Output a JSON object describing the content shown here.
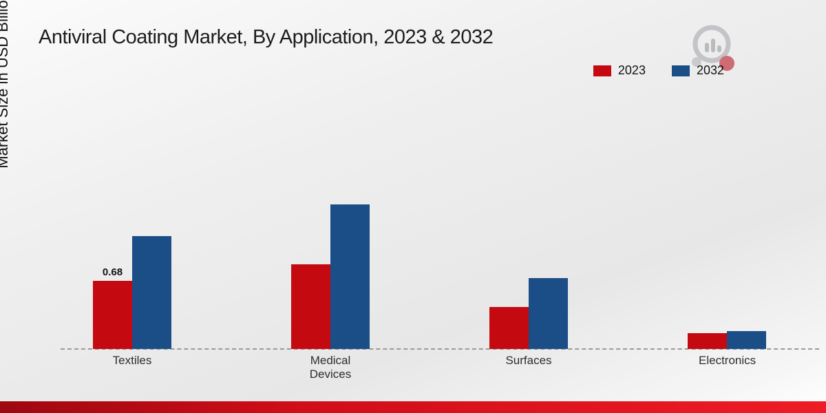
{
  "title": "Antiviral Coating Market, By Application, 2023 & 2032",
  "y_axis_label": "Market Size in USD Billion",
  "colors": {
    "series_2023": "#c50910",
    "series_2032": "#1b4d87",
    "accent_strip": "#d5101b",
    "title_text": "#1c1c1c"
  },
  "legend": [
    {
      "label": "2023",
      "color": "#c50910"
    },
    {
      "label": "2032",
      "color": "#1b4d87"
    }
  ],
  "branding": {
    "logo": "market-research-magnifier-logo"
  },
  "chart_data": {
    "type": "bar",
    "title": "Antiviral Coating Market, By Application, 2023 & 2032",
    "xlabel": "",
    "ylabel": "Market Size in USD Billion",
    "categories": [
      "Textiles",
      "Medical Devices",
      "Surfaces",
      "Electronics"
    ],
    "series": [
      {
        "name": "2023",
        "color": "#c50910",
        "values": [
          0.68,
          0.85,
          0.42,
          0.16
        ]
      },
      {
        "name": "2032",
        "color": "#1b4d87",
        "values": [
          1.13,
          1.45,
          0.71,
          0.18
        ]
      }
    ],
    "annotations": [
      {
        "category": "Textiles",
        "series": "2023",
        "text": "0.68"
      }
    ],
    "ylim": [
      0,
      1.6
    ],
    "grid": false,
    "baseline_style": "dashed",
    "legend_position": "top-right"
  }
}
